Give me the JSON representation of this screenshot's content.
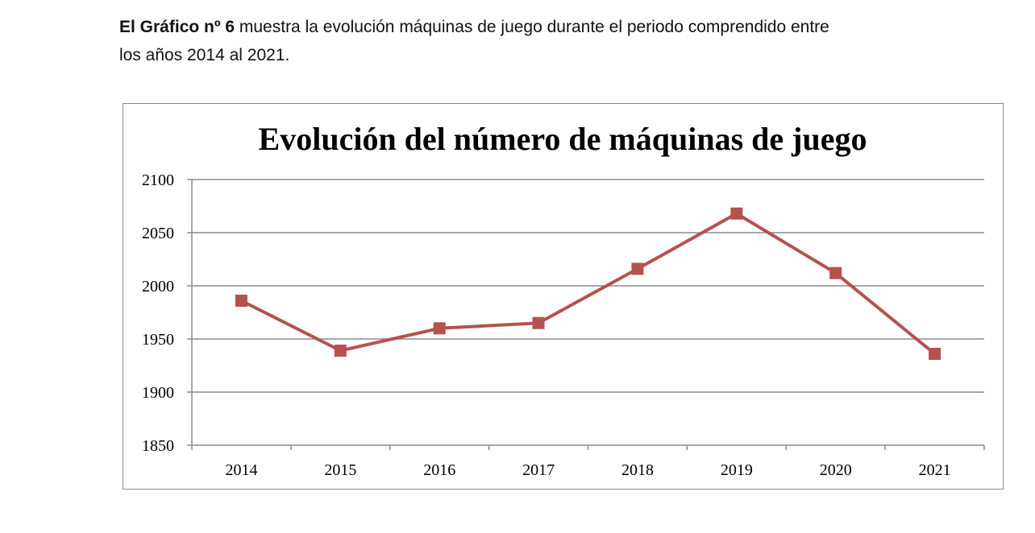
{
  "intro": {
    "bold": "El Gráfico nº 6",
    "line1_rest": " muestra la evolución máquinas de juego durante el periodo comprendido entre",
    "line2": "los años 2014 al 2021."
  },
  "chart_data": {
    "type": "line",
    "title": "Evolución del número de máquinas de juego",
    "xlabel": "",
    "ylabel": "",
    "categories": [
      "2014",
      "2015",
      "2016",
      "2017",
      "2018",
      "2019",
      "2020",
      "2021"
    ],
    "series": [
      {
        "values": [
          1986,
          1939,
          1960,
          1965,
          2016,
          2068,
          2012,
          1936
        ]
      }
    ],
    "ylim": [
      1850,
      2100
    ],
    "yticks": [
      1850,
      1900,
      1950,
      2000,
      2050,
      2100
    ],
    "grid": true,
    "legend": "none",
    "line_color": "#b5524e",
    "marker": "square"
  }
}
